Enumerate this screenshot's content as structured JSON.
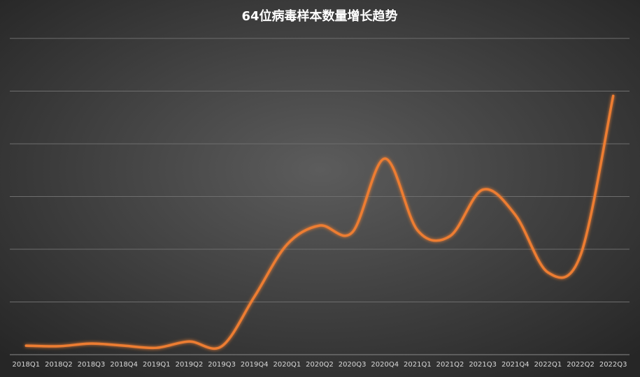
{
  "chart_data": {
    "type": "line",
    "title": "64位病毒样本数量增长趋势",
    "categories": [
      "2018Q1",
      "2018Q2",
      "2018Q3",
      "2018Q4",
      "2019Q1",
      "2019Q2",
      "2019Q3",
      "2019Q4",
      "2020Q1",
      "2020Q2",
      "2020Q3",
      "2020Q4",
      "2021Q1",
      "2021Q2",
      "2021Q3",
      "2021Q4",
      "2022Q1",
      "2022Q2",
      "2022Q3"
    ],
    "series": [
      {
        "color": "#ED7D31",
        "values": [
          0.17,
          0.16,
          0.21,
          0.17,
          0.13,
          0.25,
          0.16,
          1.1,
          2.09,
          2.45,
          2.32,
          3.72,
          2.36,
          2.25,
          3.13,
          2.65,
          1.56,
          1.89,
          4.91
        ]
      }
    ],
    "ylim": [
      0,
      6
    ],
    "yticks": [
      1,
      2,
      3,
      4,
      5,
      6
    ],
    "grid": true
  }
}
